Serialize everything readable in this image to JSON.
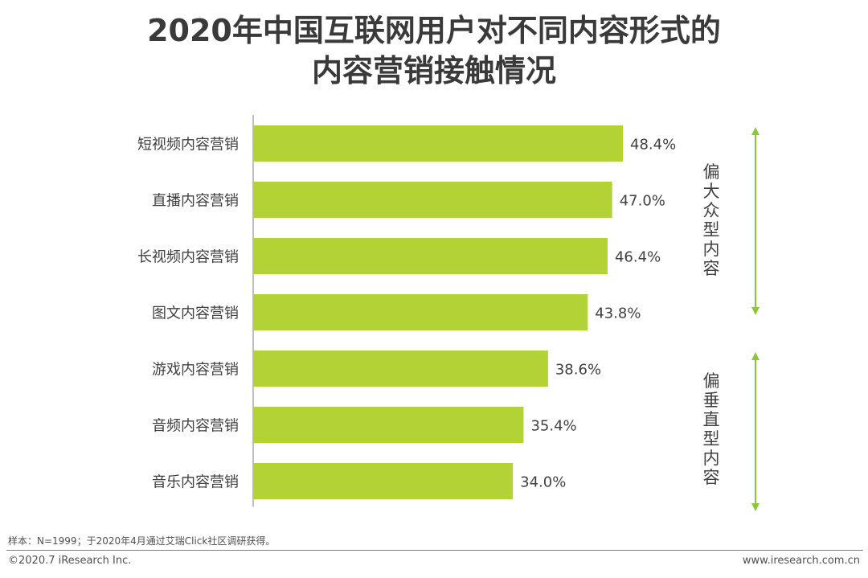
{
  "title_line1": "2020年中国互联网用户对不同内容形式的",
  "title_line2": "内容营销接触情况",
  "chart_data": {
    "type": "bar",
    "orientation": "horizontal",
    "categories": [
      "短视频内容营销",
      "直播内容营销",
      "长视频内容营销",
      "图文内容营销",
      "游戏内容营销",
      "音频内容营销",
      "音乐内容营销"
    ],
    "values": [
      48.4,
      47.0,
      46.4,
      43.8,
      38.6,
      35.4,
      34.0
    ],
    "value_labels": [
      "48.4%",
      "47.0%",
      "46.4%",
      "43.8%",
      "38.6%",
      "35.4%",
      "34.0%"
    ],
    "unit": "%",
    "xlim": [
      0,
      60
    ],
    "bar_color": "#b2d235",
    "groups": [
      {
        "label": "偏大众型内容",
        "categories": [
          "短视频内容营销",
          "直播内容营销",
          "长视频内容营销",
          "图文内容营销"
        ]
      },
      {
        "label": "偏垂直型内容",
        "categories": [
          "游戏内容营销",
          "音频内容营销",
          "音乐内容营销"
        ]
      }
    ],
    "arrow_color": "#8cc63f"
  },
  "side_labels": {
    "popular": "偏\n大\n众\n型\n内\n容",
    "vertical": "偏\n垂\n直\n型\n内\n容"
  },
  "footer": {
    "note": "样本：N=1999；于2020年4月通过艾瑞Click社区调研获得。",
    "copyright": "©2020.7 iResearch Inc.",
    "site": "www.iresearch.com.cn"
  }
}
